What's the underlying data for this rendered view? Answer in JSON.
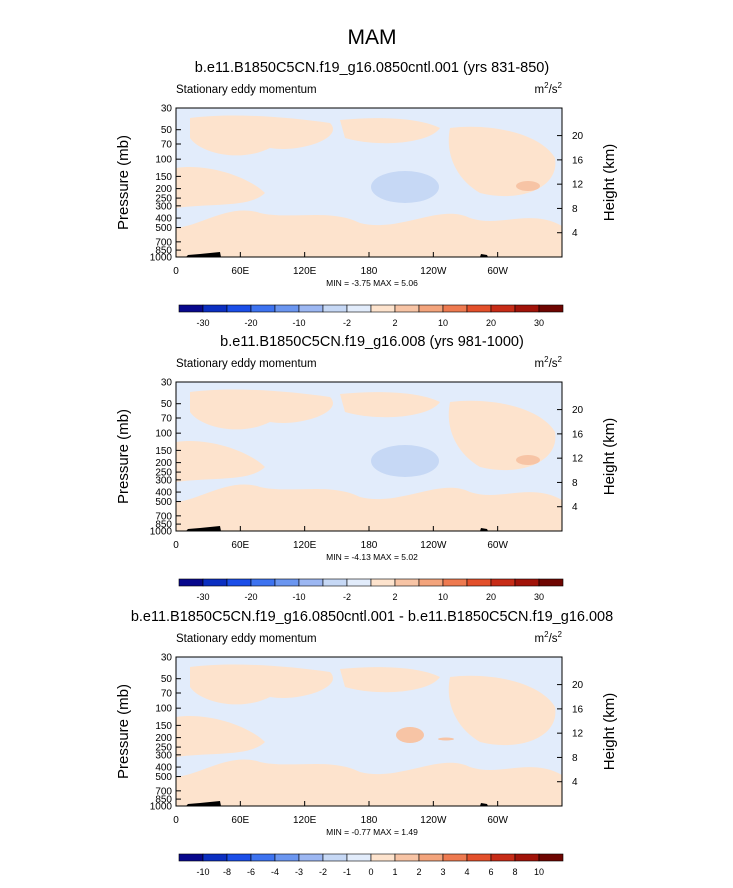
{
  "figure_title": "MAM",
  "colors": {
    "colormap": [
      "#08088c",
      "#0b2fc1",
      "#1b4ee8",
      "#3d73f0",
      "#6b96f0",
      "#9cb7f2",
      "#c6d8f5",
      "#e2ecfb",
      "#fde3cd",
      "#f7c4a5",
      "#f3a47c",
      "#ee7a50",
      "#e3502b",
      "#c72c17",
      "#a11309",
      "#6e0501"
    ]
  },
  "chart_data": [
    {
      "type": "heatmap",
      "title": "b.e11.B1850C5CN.f19_g16.0850cntl.001 (yrs 831-850)",
      "left_label": "Stationary eddy momentum",
      "units_label": "m",
      "units_sup": "2",
      "units_sep": "/s",
      "units_sup2": "2",
      "ylabel": "Pressure (mb)",
      "ylabel_right": "Height (km)",
      "pressure_ticks": [
        "30",
        "50",
        "70",
        "100",
        "150",
        "200",
        "250",
        "300",
        "400",
        "500",
        "700",
        "850",
        "1000"
      ],
      "pressure_values": [
        30,
        50,
        70,
        100,
        150,
        200,
        250,
        300,
        400,
        500,
        700,
        850,
        1000
      ],
      "height_ticks": [
        "20",
        "16",
        "12",
        "8",
        "4"
      ],
      "height_values": [
        20,
        16,
        12,
        8,
        4
      ],
      "lon_ticks": [
        "0",
        "60E",
        "120E",
        "180",
        "120W",
        "60W"
      ],
      "lon_values": [
        0,
        60,
        120,
        180,
        240,
        300
      ],
      "minmax_text": "MIN = -3.75 MAX = 5.06",
      "min": -3.75,
      "max": 5.06,
      "colorbar_labels": [
        "-30",
        "-20",
        "-10",
        "-2",
        "2",
        "10",
        "20",
        "30"
      ],
      "colorbar_levels": [
        -30,
        -25,
        -20,
        -15,
        -10,
        -5,
        -2,
        -1,
        1,
        2,
        5,
        10,
        15,
        20,
        25,
        30
      ],
      "dominant_fields": [
        {
          "region": "broad background",
          "level_range": "-1 to 1"
        },
        {
          "region": "upper troposphere near 180 longitude",
          "level_range": "-2 to -1"
        },
        {
          "region": "upper troposphere near 45W",
          "level_range": "1 to 2"
        }
      ]
    },
    {
      "type": "heatmap",
      "title": "b.e11.B1850C5CN.f19_g16.008 (yrs 981-1000)",
      "left_label": "Stationary eddy momentum",
      "units_label": "m",
      "units_sup": "2",
      "units_sep": "/s",
      "units_sup2": "2",
      "ylabel": "Pressure (mb)",
      "ylabel_right": "Height (km)",
      "pressure_ticks": [
        "30",
        "50",
        "70",
        "100",
        "150",
        "200",
        "250",
        "300",
        "400",
        "500",
        "700",
        "850",
        "1000"
      ],
      "pressure_values": [
        30,
        50,
        70,
        100,
        150,
        200,
        250,
        300,
        400,
        500,
        700,
        850,
        1000
      ],
      "height_ticks": [
        "20",
        "16",
        "12",
        "8",
        "4"
      ],
      "height_values": [
        20,
        16,
        12,
        8,
        4
      ],
      "lon_ticks": [
        "0",
        "60E",
        "120E",
        "180",
        "120W",
        "60W"
      ],
      "lon_values": [
        0,
        60,
        120,
        180,
        240,
        300
      ],
      "minmax_text": "MIN = -4.13 MAX = 5.02",
      "min": -4.13,
      "max": 5.02,
      "colorbar_labels": [
        "-30",
        "-20",
        "-10",
        "-2",
        "2",
        "10",
        "20",
        "30"
      ],
      "colorbar_levels": [
        -30,
        -25,
        -20,
        -15,
        -10,
        -5,
        -2,
        -1,
        1,
        2,
        5,
        10,
        15,
        20,
        25,
        30
      ],
      "dominant_fields": [
        {
          "region": "broad background",
          "level_range": "-1 to 1"
        },
        {
          "region": "upper troposphere near 180 longitude",
          "level_range": "-2 to -1"
        },
        {
          "region": "upper troposphere near 45W",
          "level_range": "1 to 2"
        }
      ]
    },
    {
      "type": "heatmap",
      "title": "b.e11.B1850C5CN.f19_g16.0850cntl.001 - b.e11.B1850C5CN.f19_g16.008",
      "left_label": "Stationary eddy momentum",
      "units_label": "m",
      "units_sup": "2",
      "units_sep": "/s",
      "units_sup2": "2",
      "ylabel": "Pressure (mb)",
      "ylabel_right": "Height (km)",
      "pressure_ticks": [
        "30",
        "50",
        "70",
        "100",
        "150",
        "200",
        "250",
        "300",
        "400",
        "500",
        "700",
        "850",
        "1000"
      ],
      "pressure_values": [
        30,
        50,
        70,
        100,
        150,
        200,
        250,
        300,
        400,
        500,
        700,
        850,
        1000
      ],
      "height_ticks": [
        "20",
        "16",
        "12",
        "8",
        "4"
      ],
      "height_values": [
        20,
        16,
        12,
        8,
        4
      ],
      "lon_ticks": [
        "0",
        "60E",
        "120E",
        "180",
        "120W",
        "60W"
      ],
      "lon_values": [
        0,
        60,
        120,
        180,
        240,
        300
      ],
      "minmax_text": "MIN = -0.77 MAX = 1.49",
      "min": -0.77,
      "max": 1.49,
      "colorbar_labels": [
        "-10",
        "-8",
        "-6",
        "-4",
        "-3",
        "-2",
        "-1",
        "0",
        "1",
        "2",
        "3",
        "4",
        "6",
        "8",
        "10"
      ],
      "colorbar_levels": [
        -10,
        -8,
        -6,
        -4,
        -3,
        -2,
        -1,
        0,
        1,
        2,
        3,
        4,
        6,
        8,
        10
      ],
      "dominant_fields": [
        {
          "region": "broad background",
          "level_range": "-1 to 1"
        },
        {
          "region": "upper troposphere near 160W",
          "level_range": "1 to 2"
        }
      ]
    }
  ]
}
